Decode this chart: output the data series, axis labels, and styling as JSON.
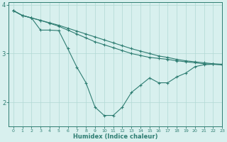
{
  "x": [
    0,
    1,
    2,
    3,
    4,
    5,
    6,
    7,
    8,
    9,
    10,
    11,
    12,
    13,
    14,
    15,
    16,
    17,
    18,
    19,
    20,
    21,
    22,
    23
  ],
  "line_top": [
    3.88,
    3.78,
    3.73,
    3.68,
    3.63,
    3.58,
    3.52,
    3.46,
    3.4,
    3.34,
    3.28,
    3.22,
    3.16,
    3.1,
    3.05,
    3.0,
    2.95,
    2.92,
    2.88,
    2.85,
    2.83,
    2.81,
    2.79,
    2.78
  ],
  "line_mid": [
    3.88,
    3.78,
    3.73,
    3.68,
    3.62,
    3.56,
    3.48,
    3.4,
    3.32,
    3.24,
    3.18,
    3.12,
    3.06,
    3.0,
    2.96,
    2.92,
    2.9,
    2.88,
    2.85,
    2.83,
    2.81,
    2.79,
    2.78,
    2.77
  ],
  "line_bot": [
    3.88,
    3.78,
    3.73,
    3.48,
    3.48,
    3.47,
    3.1,
    2.72,
    2.4,
    1.9,
    1.73,
    1.73,
    1.9,
    2.2,
    2.35,
    2.5,
    2.4,
    2.4,
    2.52,
    2.6,
    2.73,
    2.77,
    2.78,
    2.77
  ],
  "line_color": "#2e7d72",
  "bg_color": "#d8f0ee",
  "grid_color": "#b0d8d4",
  "axis_color": "#2e7d72",
  "xlabel": "Humidex (Indice chaleur)",
  "ylim": [
    1.5,
    4.05
  ],
  "xlim": [
    -0.5,
    23
  ],
  "yticks": [
    2,
    3,
    4
  ],
  "xticks": [
    0,
    1,
    2,
    3,
    4,
    5,
    6,
    7,
    8,
    9,
    10,
    11,
    12,
    13,
    14,
    15,
    16,
    17,
    18,
    19,
    20,
    21,
    22,
    23
  ]
}
